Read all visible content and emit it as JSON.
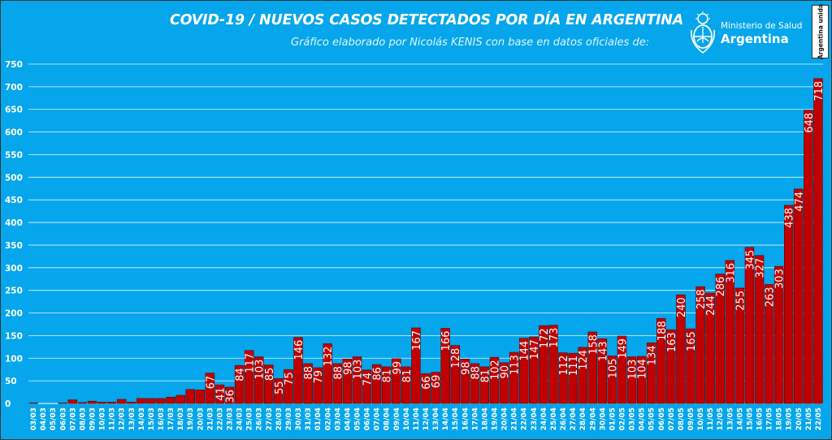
{
  "header": {
    "title": "COVID-19  /  NUEVOS CASOS DETECTADOS POR DÍA EN ARGENTINA",
    "subtitle": "Gráfico elaborado por Nicolás KENIS con base en datos oficiales de:",
    "logo_ministry": "Ministerio de Salud",
    "logo_country": "Argentina",
    "badge_text": "Argentina unida"
  },
  "colors": {
    "background": "#05a6eb",
    "bar_fill": "#c00000",
    "bar_stroke": "#5a0000",
    "grid": "#ffffff",
    "text": "#ffffff"
  },
  "chart_data": {
    "type": "bar",
    "title": "COVID-19  /  NUEVOS CASOS DETECTADOS POR DÍA EN ARGENTINA",
    "subtitle": "Gráfico elaborado por Nicolás KENIS con base en datos oficiales de:",
    "xlabel": "",
    "ylabel": "",
    "ylim": [
      0,
      750
    ],
    "yticks": [
      0,
      50,
      100,
      150,
      200,
      250,
      300,
      350,
      400,
      450,
      500,
      550,
      600,
      650,
      700,
      750
    ],
    "grid": true,
    "legend": "none",
    "categories": [
      "03/03",
      "04/03",
      "05/03",
      "06/03",
      "07/03",
      "08/03",
      "09/03",
      "10/03",
      "11/03",
      "12/03",
      "13/03",
      "14/03",
      "15/03",
      "16/03",
      "17/03",
      "18/03",
      "19/03",
      "20/03",
      "21/03",
      "22/03",
      "23/03",
      "24/03",
      "25/03",
      "26/03",
      "27/03",
      "28/03",
      "29/03",
      "30/03",
      "31/03",
      "01/04",
      "02/04",
      "03/04",
      "04/04",
      "05/04",
      "06/04",
      "07/04",
      "08/04",
      "09/04",
      "10/04",
      "11/04",
      "12/04",
      "13/04",
      "14/04",
      "15/04",
      "16/04",
      "17/04",
      "18/04",
      "19/04",
      "20/04",
      "21/04",
      "22/04",
      "23/04",
      "24/04",
      "25/04",
      "26/04",
      "27/04",
      "28/04",
      "29/04",
      "30/04",
      "01/05",
      "02/05",
      "03/05",
      "04/05",
      "05/05",
      "06/05",
      "07/05",
      "08/05",
      "09/05",
      "10/05",
      "11/05",
      "12/05",
      "13/05",
      "14/05",
      "15/05",
      "16/05",
      "17/05",
      "18/05",
      "19/05",
      "20/05",
      "21/05",
      "22/05"
    ],
    "values": [
      1,
      0,
      0,
      1,
      8,
      2,
      5,
      3,
      3,
      9,
      3,
      11,
      11,
      11,
      14,
      18,
      31,
      30,
      67,
      41,
      36,
      84,
      117,
      103,
      85,
      55,
      75,
      146,
      88,
      79,
      132,
      88,
      98,
      103,
      74,
      86,
      81,
      99,
      81,
      167,
      66,
      69,
      166,
      128,
      98,
      88,
      81,
      102,
      90,
      113,
      144,
      147,
      172,
      173,
      112,
      111,
      124,
      158,
      143,
      105,
      149,
      103,
      104,
      134,
      188,
      163,
      240,
      165,
      258,
      244,
      286,
      316,
      255,
      345,
      327,
      263,
      303,
      438,
      474,
      648,
      718
    ],
    "data_labels": [
      null,
      null,
      null,
      null,
      null,
      null,
      null,
      null,
      null,
      null,
      null,
      null,
      null,
      null,
      null,
      null,
      null,
      null,
      "67",
      "41",
      "36",
      "84",
      "117",
      "103",
      "85",
      "55",
      "75",
      "146",
      "88",
      "79",
      "132",
      "88",
      "98",
      "103",
      "74",
      "86",
      "81",
      "99",
      "81",
      "167",
      "66",
      "69",
      "166",
      "128",
      "98",
      "88",
      "81",
      "102",
      "90",
      "113",
      "144",
      "147",
      "172",
      "173",
      "112",
      "111",
      "124",
      "158",
      "143",
      "105",
      "149",
      "103",
      "104",
      "134",
      "188",
      "163",
      "240",
      "165",
      "258",
      "244",
      "286",
      "316",
      "255",
      "345",
      "327",
      "263",
      "303",
      "438",
      "474",
      "648",
      "718"
    ]
  }
}
